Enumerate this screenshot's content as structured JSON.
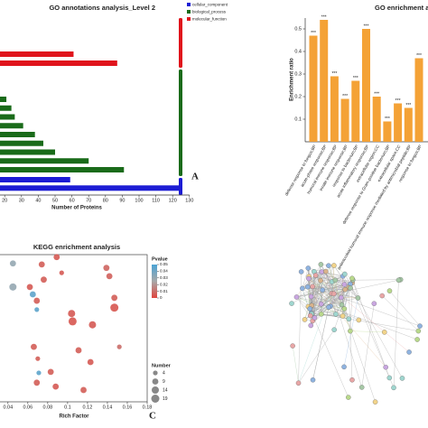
{
  "chart_data": [
    {
      "type": "hbar",
      "title": "GO annotations analysis_Level 2",
      "x_label": "Number of Proteins",
      "panel_label": "A",
      "series": [
        {
          "name": "cellular_component",
          "color": "#1c1cd4",
          "values": [
            59,
            125
          ]
        },
        {
          "name": "biological_process",
          "color": "#1a6b1a",
          "values": [
            21,
            24,
            26,
            31,
            38,
            43,
            50,
            70,
            91
          ]
        },
        {
          "name": "molecular_function",
          "color": "#e0141c",
          "values": [
            61,
            87
          ]
        }
      ],
      "xlim": [
        0,
        130
      ],
      "xticks": [
        20,
        30,
        40,
        50,
        60,
        70,
        80,
        90,
        100,
        110,
        120,
        130
      ]
    },
    {
      "type": "bar",
      "title": "GO enrichment analysis",
      "y_label": "Enrichment ratio",
      "color": "#f4a236",
      "categories": [
        "defense response to fungus;BP",
        "acute-phase response;BP",
        "humoral immune response;BP",
        "innate immune response;BP",
        "response to bacterium;BP",
        "acute inflammatory response;BP",
        "extracellular region;CC",
        "defense response to Gram-positive bacterium;BP",
        "extracellular space;CC",
        "antimicrobial humoral immune response mediated by antimicrobial peptide;BP",
        "response to fungus;BP"
      ],
      "values": [
        0.47,
        0.54,
        0.29,
        0.19,
        0.27,
        0.5,
        0.2,
        0.09,
        0.17,
        0.15,
        0.37
      ],
      "significance": [
        "***",
        "***",
        "***",
        "***",
        "***",
        "***",
        "***",
        "***",
        "***",
        "***",
        "***"
      ],
      "ylim": [
        0,
        0.55
      ],
      "yticks": [
        0.1,
        0.2,
        0.3,
        0.4,
        0.5
      ]
    },
    {
      "type": "scatter",
      "title": "KEGG enrichment analysis",
      "x_label": "Rich Factor",
      "panel_label": "C",
      "x": [
        0.089,
        0.074,
        0.045,
        0.094,
        0.076,
        0.045,
        0.139,
        0.142,
        0.147,
        0.062,
        0.065,
        0.069,
        0.069,
        0.104,
        0.105,
        0.147,
        0.125,
        0.066,
        0.111,
        0.152,
        0.07,
        0.123,
        0.071,
        0.083,
        0.069,
        0.088,
        0.116
      ],
      "y": [
        29.5,
        28,
        28.2,
        26.3,
        24.9,
        23.4,
        27.3,
        25.6,
        21.2,
        23.4,
        21.9,
        20.6,
        18.8,
        18,
        16.4,
        19.2,
        15.7,
        11.2,
        10.5,
        11.2,
        8.8,
        8.1,
        5.9,
        6.1,
        3.9,
        3.1,
        2.4
      ],
      "sizes": [
        9,
        9,
        9,
        4,
        9,
        14,
        9,
        9,
        9,
        9,
        9,
        9,
        4,
        14,
        19,
        19,
        14,
        9,
        9,
        4,
        4,
        9,
        4,
        9,
        9,
        9,
        9
      ],
      "pvalues": [
        0.005,
        0.006,
        0.03,
        0.005,
        0.006,
        0.03,
        0.008,
        0.007,
        0.006,
        0.005,
        0.045,
        0.006,
        0.045,
        0.005,
        0.004,
        0.004,
        0.005,
        0.006,
        0.006,
        0.01,
        0.006,
        0.005,
        0.045,
        0.006,
        0.006,
        0.005,
        0.006
      ],
      "xlim": [
        0.032,
        0.18
      ],
      "xticks": [
        0.04,
        0.06,
        0.08,
        0.1,
        0.12,
        0.14,
        0.16,
        0.18
      ],
      "ylim": [
        0,
        30
      ],
      "colorbar": {
        "title": "Pvalue",
        "ticks": [
          0.05,
          0.04,
          0.03,
          0.02,
          0.01,
          0
        ],
        "colors": [
          "#e0463f",
          "#a8a8a8",
          "#4aa3d4"
        ]
      },
      "size_legend": {
        "title": "Number",
        "values": [
          4,
          9,
          14,
          19
        ]
      }
    }
  ]
}
